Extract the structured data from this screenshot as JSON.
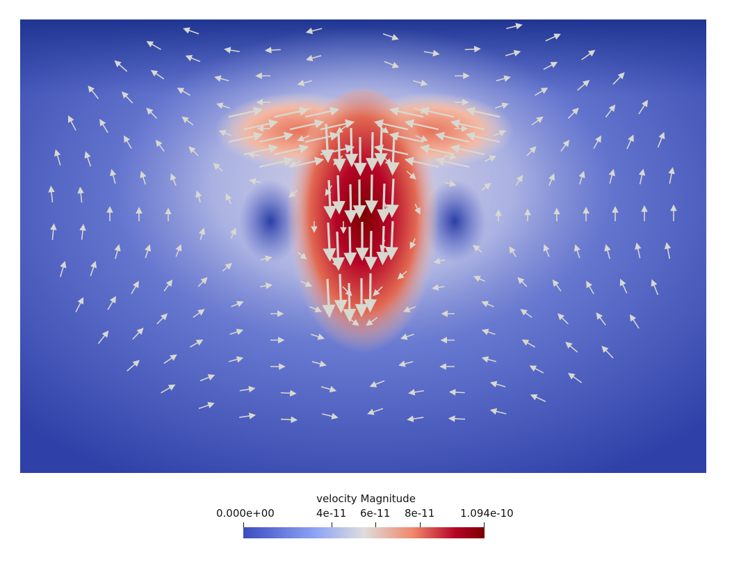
{
  "colors": {
    "low": "#3b4cc0",
    "mid": "#dddddd",
    "high": "#b40426",
    "max": "#7a0000",
    "arrow": "#d8d8d0"
  },
  "colorbar": {
    "title": "velocity Magnitude",
    "range": [
      0,
      1.094e-10
    ],
    "ticks": [
      {
        "value": 0,
        "label": "0.000e+00"
      },
      {
        "value": 4e-11,
        "label": "4e-11"
      },
      {
        "value": 6e-11,
        "label": "6e-11"
      },
      {
        "value": 8e-11,
        "label": "8e-11"
      },
      {
        "value": 1.094e-10,
        "label": "1.094e-10"
      }
    ]
  }
}
